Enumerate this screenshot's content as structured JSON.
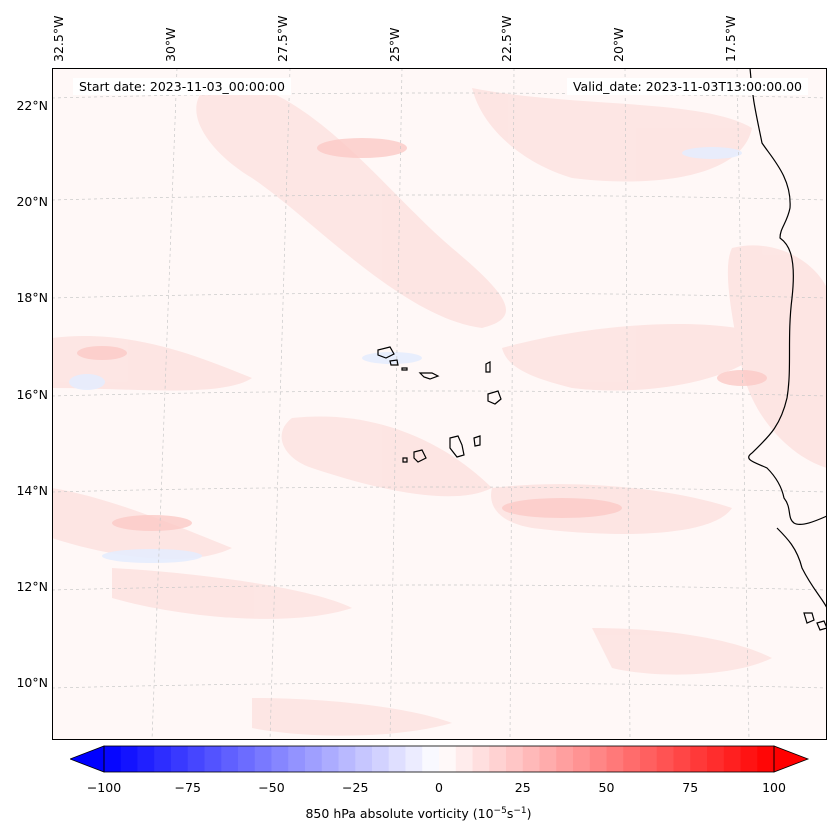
{
  "header": {
    "start_date": "Start date: 2023-11-03_00:00:00",
    "valid_date": "Valid_date: 2023-11-03T13:00:00.00"
  },
  "longitude_labels": [
    "32.5°W",
    "30°W",
    "27.5°W",
    "25°W",
    "22.5°W",
    "20°W",
    "17.5°W"
  ],
  "latitude_labels": [
    "22°N",
    "20°N",
    "18°N",
    "16°N",
    "14°N",
    "12°N",
    "10°N"
  ],
  "colorbar": {
    "label_main": "850 hPa absolute vorticity (10",
    "label_exp1": "−5",
    "label_mid": "s",
    "label_exp2": "−1",
    "label_end": ")",
    "ticks": [
      "−100",
      "−75",
      "−50",
      "−25",
      "0",
      "25",
      "50",
      "75",
      "100"
    ],
    "vmin": -100,
    "vmax": 100,
    "levels": 40,
    "negative_color": "#0000ff",
    "positive_color": "#ff0000",
    "extend": "both"
  },
  "map": {
    "variable": "850 hPa absolute vorticity",
    "background_color": "#fff8f7",
    "coastline_color": "#000000",
    "gridlines": true,
    "gridline_style": "dashed grey"
  }
}
